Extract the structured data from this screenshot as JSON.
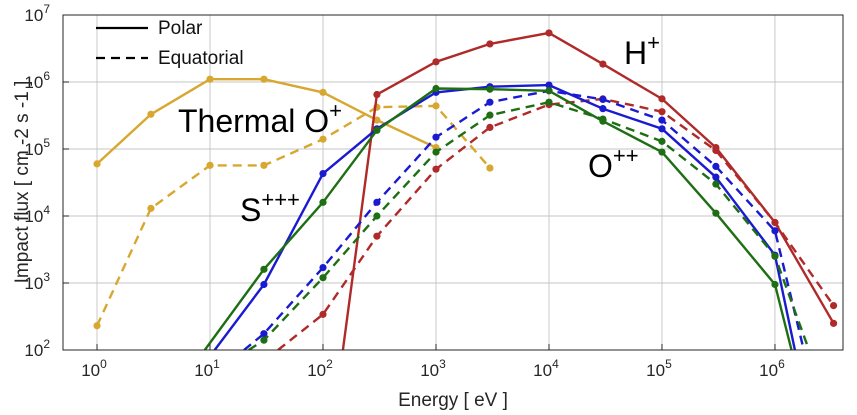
{
  "chart_data": {
    "type": "line",
    "xlabel": "Energy [ eV ]",
    "ylabel": "Impact flux [ cm -2 s -1 ]",
    "xscale": "log",
    "yscale": "log",
    "xlim": [
      0.5,
      4000000
    ],
    "ylim": [
      100,
      10000000
    ],
    "grid": true,
    "x_ticks": [
      {
        "base": "10",
        "exp": "0",
        "value": 1
      },
      {
        "base": "10",
        "exp": "1",
        "value": 10
      },
      {
        "base": "10",
        "exp": "2",
        "value": 100
      },
      {
        "base": "10",
        "exp": "3",
        "value": 1000
      },
      {
        "base": "10",
        "exp": "4",
        "value": 10000
      },
      {
        "base": "10",
        "exp": "5",
        "value": 100000
      },
      {
        "base": "10",
        "exp": "6",
        "value": 1000000
      }
    ],
    "y_ticks": [
      {
        "base": "10",
        "exp": "2",
        "value": 100
      },
      {
        "base": "10",
        "exp": "3",
        "value": 1000
      },
      {
        "base": "10",
        "exp": "4",
        "value": 10000
      },
      {
        "base": "10",
        "exp": "5",
        "value": 100000
      },
      {
        "base": "10",
        "exp": "6",
        "value": 1000000
      },
      {
        "base": "10",
        "exp": "7",
        "value": 10000000
      }
    ],
    "legend": {
      "placement": "top-left",
      "entries": [
        {
          "label": "Polar",
          "style": "solid"
        },
        {
          "label": "Equatorial",
          "style": "dashed"
        }
      ]
    },
    "annotations": [
      {
        "base": "Thermal O",
        "sup": "+",
        "color": "#d8a730"
      },
      {
        "base": "H",
        "sup": "+",
        "color": "#b02a2a"
      },
      {
        "base": "S",
        "sup": "+++",
        "color": "#1a1ad0"
      },
      {
        "base": "O",
        "sup": "++",
        "color": "#1e6f14"
      }
    ],
    "series": [
      {
        "species": "Thermal O+",
        "geometry": "Polar",
        "style": "solid",
        "color": "#d8a730",
        "x": [
          1,
          3,
          10,
          30,
          100,
          300,
          1000
        ],
        "y": [
          60000,
          330000,
          1100000,
          1100000,
          700000,
          270000,
          105000
        ]
      },
      {
        "species": "Thermal O+",
        "geometry": "Equatorial",
        "style": "dashed",
        "color": "#d8a730",
        "x": [
          1,
          3,
          10,
          30,
          100,
          300,
          1000,
          3000
        ],
        "y": [
          230,
          13000,
          57000,
          57000,
          140000,
          420000,
          440000,
          52000
        ]
      },
      {
        "species": "H+",
        "geometry": "Polar",
        "style": "solid",
        "color": "#b02a2a",
        "x": [
          150,
          300,
          1000,
          3000,
          10000,
          30000,
          100000,
          300000,
          1000000,
          3300000
        ],
        "y": [
          100,
          650000,
          2000000,
          3700000,
          5400000,
          1850000,
          560000,
          105000,
          8000,
          250
        ]
      },
      {
        "species": "H+",
        "geometry": "Equatorial",
        "style": "dashed",
        "color": "#b02a2a",
        "x": [
          40,
          100,
          300,
          1000,
          3000,
          10000,
          30000,
          100000,
          300000,
          1000000,
          3300000
        ],
        "y": [
          100,
          340,
          5000,
          50000,
          210000,
          460000,
          560000,
          360000,
          95000,
          8000,
          460
        ]
      },
      {
        "species": "S+++",
        "geometry": "Polar",
        "style": "solid",
        "color": "#1a1ad0",
        "x": [
          11,
          30,
          100,
          300,
          1000,
          3000,
          10000,
          30000,
          100000,
          300000,
          1000000,
          1500000
        ],
        "y": [
          100,
          950,
          43000,
          200000,
          700000,
          850000,
          900000,
          400000,
          200000,
          38000,
          2600,
          100
        ]
      },
      {
        "species": "S+++",
        "geometry": "Equatorial",
        "style": "dashed",
        "color": "#1a1ad0",
        "x": [
          20,
          30,
          100,
          300,
          1000,
          3000,
          10000,
          30000,
          100000,
          300000,
          1000000,
          1800000
        ],
        "y": [
          100,
          175,
          1700,
          16000,
          150000,
          500000,
          740000,
          550000,
          270000,
          55000,
          6000,
          100
        ]
      },
      {
        "species": "O++",
        "geometry": "Polar",
        "style": "solid",
        "color": "#1e6f14",
        "x": [
          9,
          30,
          100,
          300,
          1000,
          3000,
          10000,
          30000,
          100000,
          300000,
          1000000,
          1400000
        ],
        "y": [
          100,
          1600,
          16000,
          190000,
          800000,
          780000,
          740000,
          260000,
          90000,
          11000,
          950,
          100
        ]
      },
      {
        "species": "O++",
        "geometry": "Equatorial",
        "style": "dashed",
        "color": "#1e6f14",
        "x": [
          22,
          30,
          100,
          300,
          1000,
          3000,
          10000,
          30000,
          100000,
          300000,
          1000000,
          2000000
        ],
        "y": [
          100,
          140,
          1200,
          10000,
          90000,
          320000,
          500000,
          280000,
          130000,
          30000,
          2500,
          100
        ]
      }
    ]
  }
}
